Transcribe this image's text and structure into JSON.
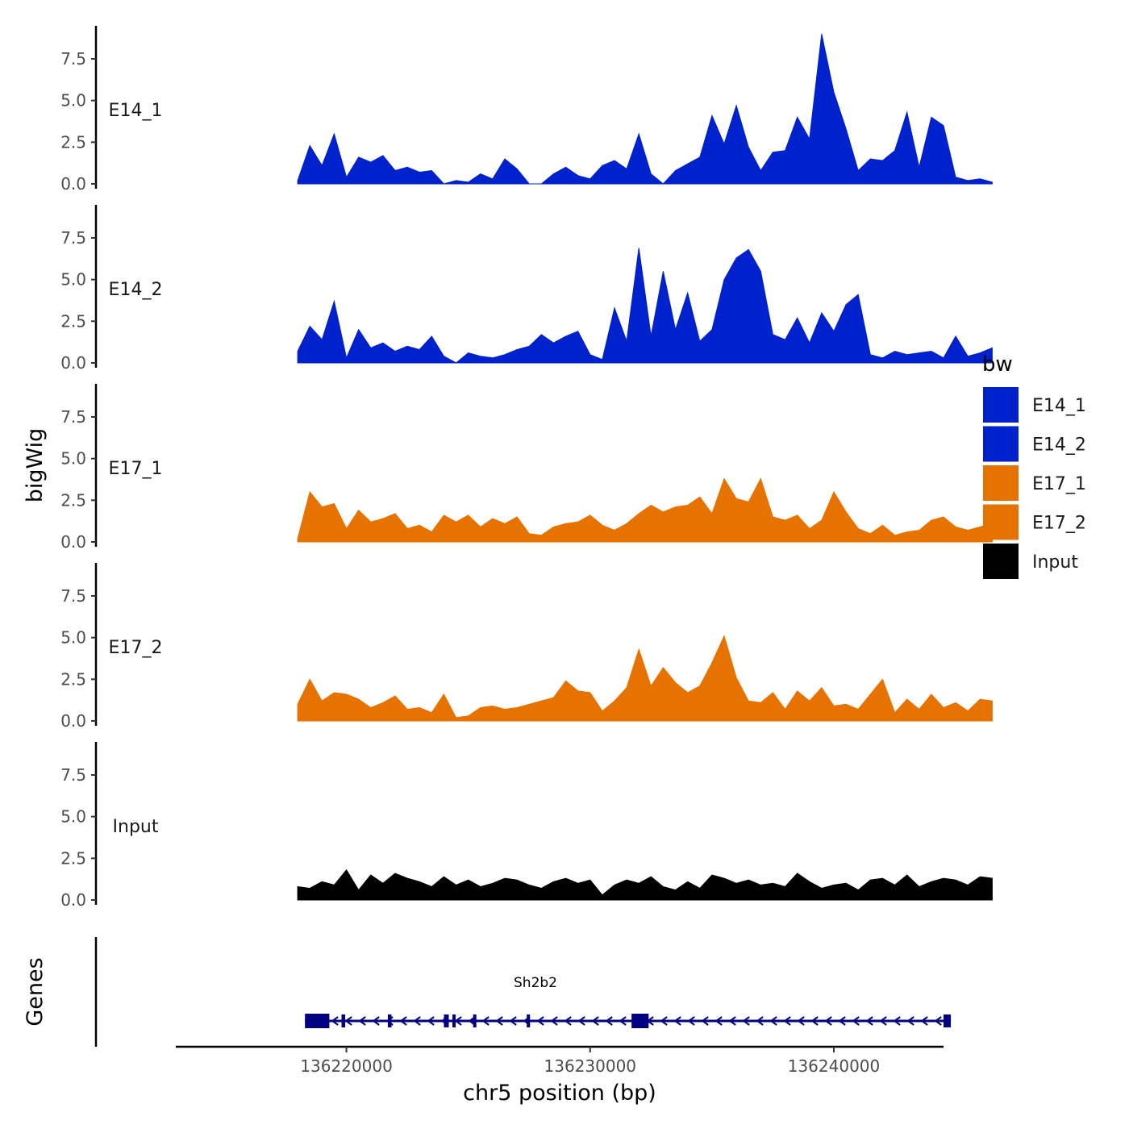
{
  "chart_data": {
    "type": "area",
    "ylabel": "bigWig",
    "xlabel": "chr5 position (bp)",
    "genes_label": "Genes",
    "xlim": [
      136213000,
      136244500
    ],
    "x_ticks": [
      136220000,
      136230000,
      136240000
    ],
    "x_tick_labels": [
      "136220000",
      "136230000",
      "136240000"
    ],
    "ylim": [
      0,
      9
    ],
    "y_ticks": [
      0,
      2.5,
      5,
      7.5
    ],
    "y_tick_labels": [
      "0.0",
      "2.5",
      "5.0",
      "7.5"
    ],
    "x": [
      136218000,
      136218500,
      136219000,
      136219500,
      136220000,
      136220500,
      136221000,
      136221500,
      136222000,
      136222500,
      136223000,
      136223500,
      136224000,
      136224500,
      136225000,
      136225500,
      136226000,
      136226500,
      136227000,
      136227500,
      136228000,
      136228500,
      136229000,
      136229500,
      136230000,
      136230500,
      136231000,
      136231500,
      136232000,
      136232500,
      136233000,
      136233500,
      136234000,
      136234500,
      136235000,
      136235500,
      136236000,
      136236500,
      136237000,
      136237500,
      136238000,
      136238500,
      136239000,
      136239500,
      136240000,
      136240500,
      136241000,
      136241500,
      136242000,
      136242500,
      136243000,
      136243500,
      136244000,
      136244500,
      136245000,
      136245500,
      136246000,
      136246500
    ],
    "series": [
      {
        "name": "E14_1",
        "color": "#0022CC",
        "values": [
          0.2,
          2.3,
          1.1,
          3.0,
          0.4,
          1.6,
          1.3,
          1.7,
          0.8,
          1.0,
          0.7,
          0.8,
          0.0,
          0.2,
          0.1,
          0.6,
          0.3,
          1.5,
          0.9,
          0.0,
          0.0,
          0.6,
          1.0,
          0.5,
          0.3,
          1.1,
          1.4,
          0.9,
          3.0,
          0.6,
          0.0,
          0.8,
          1.2,
          1.6,
          4.1,
          2.4,
          4.7,
          2.2,
          0.8,
          1.9,
          2.0,
          4.0,
          2.7,
          9.0,
          5.5,
          3.3,
          0.8,
          1.5,
          1.4,
          2.0,
          4.3,
          1.0,
          4.0,
          3.5,
          0.4,
          0.2,
          0.3,
          0.1
        ]
      },
      {
        "name": "E14_2",
        "color": "#0022CC",
        "values": [
          0.7,
          2.2,
          1.4,
          3.7,
          0.3,
          2.0,
          0.9,
          1.2,
          0.7,
          1.0,
          0.8,
          1.6,
          0.4,
          0.0,
          0.6,
          0.4,
          0.3,
          0.5,
          0.8,
          1.0,
          1.7,
          1.2,
          1.6,
          1.9,
          0.5,
          0.2,
          3.3,
          1.3,
          6.9,
          1.6,
          5.5,
          2.0,
          4.2,
          1.3,
          2.0,
          5.0,
          6.3,
          6.8,
          5.5,
          1.7,
          1.4,
          2.7,
          1.2,
          3.0,
          1.9,
          3.5,
          4.1,
          0.5,
          0.3,
          0.7,
          0.5,
          0.6,
          0.7,
          0.3,
          1.6,
          0.4,
          0.6,
          0.9
        ]
      },
      {
        "name": "E17_1",
        "color": "#E67300",
        "values": [
          0.2,
          3.0,
          2.1,
          2.3,
          0.8,
          1.9,
          1.2,
          1.4,
          1.7,
          0.8,
          1.0,
          0.6,
          1.6,
          1.2,
          1.6,
          0.9,
          1.4,
          1.1,
          1.5,
          0.5,
          0.4,
          0.9,
          1.1,
          1.2,
          1.6,
          1.0,
          0.7,
          1.1,
          1.7,
          2.2,
          1.8,
          2.1,
          2.2,
          2.7,
          1.7,
          3.8,
          2.6,
          2.4,
          3.8,
          1.5,
          1.3,
          1.6,
          0.8,
          1.3,
          3.0,
          1.8,
          0.8,
          0.5,
          1.0,
          0.4,
          0.6,
          0.7,
          1.3,
          1.5,
          0.9,
          0.7,
          0.9,
          1.1
        ]
      },
      {
        "name": "E17_2",
        "color": "#E67300",
        "values": [
          1.0,
          2.5,
          1.2,
          1.7,
          1.6,
          1.3,
          0.8,
          1.1,
          1.5,
          0.7,
          0.8,
          0.5,
          1.6,
          0.2,
          0.3,
          0.8,
          0.9,
          0.7,
          0.8,
          1.0,
          1.2,
          1.4,
          2.4,
          1.8,
          1.7,
          0.6,
          1.2,
          2.0,
          4.3,
          2.1,
          3.2,
          2.3,
          1.7,
          2.1,
          3.5,
          5.1,
          2.6,
          1.2,
          1.1,
          1.7,
          0.7,
          1.8,
          1.2,
          2.0,
          0.9,
          1.0,
          0.7,
          1.6,
          2.5,
          0.5,
          1.3,
          0.7,
          1.6,
          0.8,
          1.1,
          0.6,
          1.3,
          1.2
        ]
      },
      {
        "name": "Input",
        "color": "#000000",
        "values": [
          0.8,
          0.7,
          1.1,
          0.9,
          1.8,
          0.6,
          1.5,
          1.0,
          1.6,
          1.3,
          1.1,
          0.8,
          1.4,
          0.9,
          1.2,
          0.8,
          1.0,
          1.3,
          1.2,
          0.9,
          0.7,
          1.1,
          1.3,
          1.0,
          1.2,
          0.3,
          0.9,
          1.2,
          1.0,
          1.4,
          0.8,
          0.6,
          1.1,
          0.7,
          1.5,
          1.3,
          1.0,
          1.2,
          0.9,
          1.0,
          0.8,
          1.6,
          1.1,
          0.7,
          0.9,
          1.0,
          0.6,
          1.2,
          1.3,
          0.9,
          1.5,
          0.8,
          1.1,
          1.3,
          1.2,
          0.9,
          1.4,
          1.3
        ]
      }
    ],
    "legend": {
      "title": "bw",
      "position": "right",
      "entries": [
        {
          "label": "E14_1",
          "color": "#0022CC"
        },
        {
          "label": "E14_2",
          "color": "#0022CC"
        },
        {
          "label": "E17_1",
          "color": "#E67300"
        },
        {
          "label": "E17_2",
          "color": "#E67300"
        },
        {
          "label": "Input",
          "color": "#000000"
        }
      ]
    },
    "gene_track": {
      "gene_name": "Sh2b2",
      "color": "#000080",
      "strand": "-",
      "start": 136218300,
      "end": 136244800,
      "exons": [
        [
          136218300,
          136219300
        ],
        [
          136219800,
          136219950
        ],
        [
          136221700,
          136221850
        ],
        [
          136224000,
          136224200
        ],
        [
          136224350,
          136224450
        ],
        [
          136225200,
          136225300
        ],
        [
          136227400,
          136227500
        ],
        [
          136231700,
          136232400
        ],
        [
          136244500,
          136244800
        ]
      ]
    }
  }
}
